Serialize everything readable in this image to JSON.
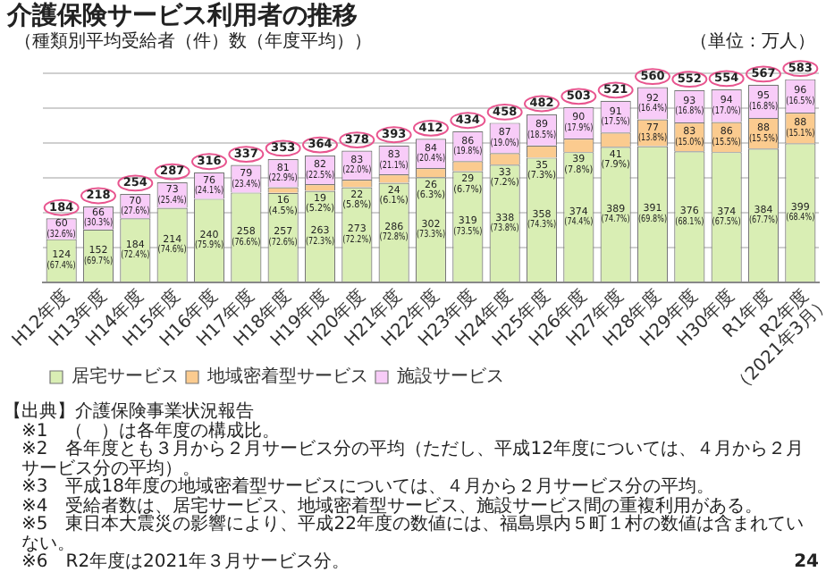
{
  "chart_data": {
    "type": "bar",
    "title": "介護保険サービス利用者の推移",
    "subtitle": "（種類別平均受給者（件）数（年度平均））",
    "categories": [
      "H12年度",
      "H13年度",
      "H14年度",
      "H15年度",
      "H16年度",
      "H17年度",
      "H18年度",
      "H19年度",
      "H20年度",
      "H21年度",
      "H22年度",
      "H23年度",
      "H24年度",
      "H25年度",
      "H26年度",
      "H27年度",
      "H28年度",
      "H29年度",
      "H30年度",
      "R1年度",
      "R2年度（2021年3月）"
    ],
    "stacked": true,
    "legend": "bottom",
    "grid": "y",
    "tick_labels": "x",
    "ylim": [
      0,
      600
    ],
    "series": [
      {
        "name": "居宅サービス",
        "color": "#d9eeb4",
        "values": [
          124,
          152,
          184,
          214,
          240,
          258,
          257,
          263,
          273,
          286,
          302,
          319,
          338,
          358,
          374,
          389,
          391,
          376,
          374,
          384,
          399
        ],
        "value_labels": [
          "124\n(67.4%)",
          "152\n(69.7%)",
          "184\n(72.4%)",
          "214\n(74.6%)",
          "240\n(75.9%)",
          "258\n(76.6%)",
          "257\n(72.6%)",
          "263\n(72.3%)",
          "273\n(72.2%)",
          "286\n(72.8%)",
          "302\n(73.3%)",
          "319\n(73.5%)",
          "338\n(73.8%)",
          "358\n(74.3%)",
          "374\n(74.4%)",
          "389\n(74.7%)",
          "391\n(69.8%)",
          "376\n(68.1%)",
          "374\n(67.5%)",
          "384\n(67.7%)",
          "399\n(68.4%)"
        ]
      },
      {
        "name": "地域密着型サービス",
        "color": "#fbcb8f",
        "values": [
          null,
          null,
          null,
          null,
          null,
          null,
          16,
          19,
          22,
          24,
          26,
          29,
          33,
          35,
          39,
          41,
          77,
          83,
          86,
          88,
          88
        ],
        "value_labels": [
          null,
          null,
          null,
          null,
          null,
          null,
          "16\n(4.5%)",
          "19\n(5.2%)",
          "22\n(5.8%)",
          "24\n(6.1%)",
          "26\n(6.3%)",
          "29\n(6.7%)",
          "33\n(7.2%)",
          "35\n(7.3%)",
          "39\n(7.8%)",
          "41\n(7.9%)",
          "77\n(13.8%)",
          "83\n(15.0%)",
          "86\n(15.5%)",
          "88\n(15.5%)",
          "88\n(15.1%)"
        ]
      },
      {
        "name": "施設サービス",
        "color": "#f8ccf8",
        "values": [
          60,
          66,
          70,
          73,
          76,
          79,
          81,
          82,
          83,
          83,
          84,
          86,
          87,
          89,
          90,
          91,
          92,
          93,
          94,
          95,
          96
        ],
        "value_labels": [
          "60\n(32.6%)",
          "66\n(30.3%)",
          "70\n(27.6%)",
          "73\n(25.4%)",
          "76\n(24.1%)",
          "79\n(23.4%)",
          "81\n(22.9%)",
          "82\n(22.5%)",
          "83\n(22.0%)",
          "83\n(21.1%)",
          "84\n(20.4%)",
          "86\n(19.8%)",
          "87\n(19.0%)",
          "89\n(18.5%)",
          "90\n(17.9%)",
          "91\n(17.5%)",
          "92\n(16.4%)",
          "93\n(16.8%)",
          "94\n(17.0%)",
          "95\n(16.8%)",
          "96\n(16.5%)"
        ]
      }
    ],
    "totals": [
      "184",
      "218",
      "254",
      "287",
      "316",
      "337",
      "353",
      "364",
      "378",
      "393",
      "412",
      "434",
      "458",
      "482",
      "503",
      "521",
      "560",
      "552",
      "554",
      "567",
      "583"
    ],
    "annotations": [
      "（単位：万人）",
      "【出典】介護保険事業状況報告",
      "※1　（　）は各年度の構成比。",
      "※2　各年度とも３月から２月サービス分の平均（ただし、平成12年度については、４月から２月サービス分の平均）。",
      "※3　平成18年度の地域密着型サービスについては、４月から２月サービス分の平均。",
      "※4　受給者数は、居宅サービス、地域密着型サービス、施設サービス間の重複利用がある。",
      "※5　東日本大震災の影響により、平成22年度の数値には、福島県内５町１村の数値は含まれていない。",
      "※6　R2年度は2021年３月サービス分。",
      "24"
    ]
  }
}
